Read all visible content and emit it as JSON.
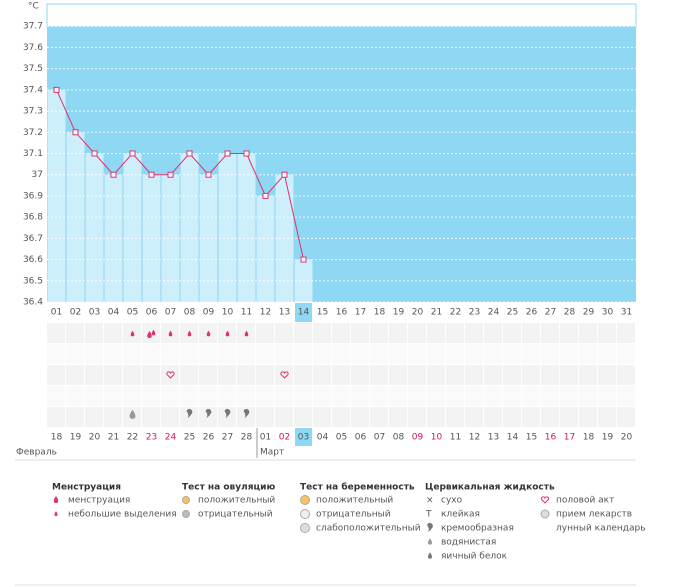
{
  "chart_data": {
    "type": "line",
    "ylabel": "°C",
    "categories": [
      "01",
      "02",
      "03",
      "04",
      "05",
      "06",
      "07",
      "08",
      "09",
      "10",
      "11",
      "12",
      "13",
      "14",
      "15",
      "16",
      "17",
      "18",
      "19",
      "20",
      "21",
      "22",
      "23",
      "24",
      "25",
      "26",
      "27",
      "28",
      "29",
      "30",
      "31"
    ],
    "series": [
      {
        "name": "temperature",
        "color": "#e0306e",
        "values": [
          37.4,
          37.2,
          37.1,
          37.0,
          37.1,
          37.0,
          37.0,
          37.1,
          37.0,
          37.1,
          37.1,
          36.9,
          37.0,
          36.6,
          null,
          null,
          null,
          null,
          null,
          null,
          null,
          null,
          null,
          null,
          null,
          null,
          null,
          null,
          null,
          null,
          null
        ]
      }
    ],
    "ylim": [
      36.4,
      37.8
    ],
    "yticks": [
      36.4,
      36.5,
      36.6,
      36.7,
      36.8,
      36.9,
      37,
      37.1,
      37.2,
      37.3,
      37.4,
      37.5,
      37.6,
      37.7
    ],
    "grid": true,
    "dates": [
      "18",
      "19",
      "20",
      "21",
      "22",
      "23",
      "24",
      "25",
      "26",
      "27",
      "28",
      "01",
      "02",
      "03",
      "04",
      "05",
      "06",
      "07",
      "08",
      "09",
      "10",
      "11",
      "12",
      "13",
      "14",
      "15",
      "16",
      "17",
      "18",
      "19",
      "20"
    ],
    "months": [
      "Февраль",
      "Март"
    ]
  },
  "legend": [
    {
      "title": "Менструация",
      "items": [
        "менструация",
        "небольшие выделения"
      ]
    },
    {
      "title": "Тест на овуляцию",
      "items": [
        "положительный",
        "отрицательный"
      ]
    },
    {
      "title": "Тест на беременность",
      "items": [
        "положительный",
        "отрицательный",
        "слабоположительный"
      ]
    },
    {
      "title": "Цервикальная жидкость",
      "items": [
        "сухо",
        "клейкая",
        "кремообразная",
        "водянистая",
        "яичный белок"
      ]
    },
    {
      "items": [
        "половой акт",
        "прием лекарств",
        "лунный календарь"
      ]
    }
  ]
}
